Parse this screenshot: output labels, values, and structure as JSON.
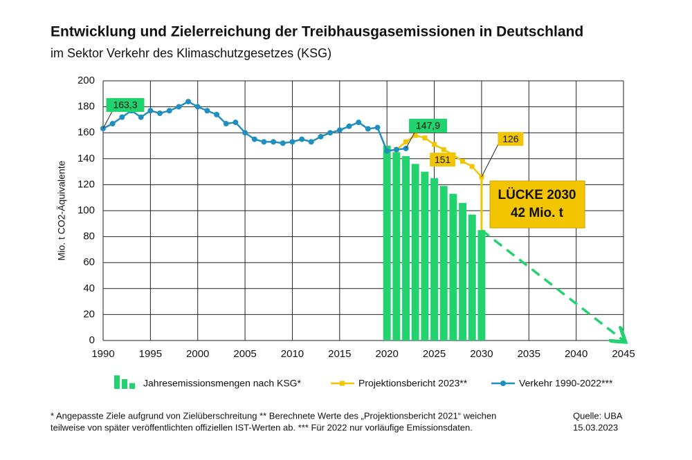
{
  "chart_data": {
    "type": "combo",
    "title": "Entwicklung und Zielerreichung der Treibhausgasemissionen in Deutschland",
    "subtitle": "im Sektor Verkehr des Klimaschutzgesetzes (KSG)",
    "ylabel": "Mio. t CO2-Äquivalente",
    "xlim": [
      1990,
      2045
    ],
    "xticks": [
      1990,
      1995,
      2000,
      2005,
      2010,
      2015,
      2020,
      2025,
      2030,
      2035,
      2040,
      2045
    ],
    "ylim": [
      0,
      200
    ],
    "yticks": [
      0,
      20,
      40,
      60,
      80,
      100,
      120,
      140,
      160,
      180,
      200
    ],
    "grid": true,
    "series": [
      {
        "name": "Jahresemissionsmengen nach KSG*",
        "type": "bar",
        "color": "#22d26e",
        "x": [
          2020,
          2021,
          2022,
          2023,
          2024,
          2025,
          2026,
          2027,
          2028,
          2029,
          2030
        ],
        "values": [
          150,
          145,
          142,
          136,
          130,
          125,
          119,
          113,
          106,
          97,
          85
        ]
      },
      {
        "name": "Projektionsbericht 2023**",
        "type": "line",
        "marker": "square",
        "color": "#f2c500",
        "label_color": "#f2c500",
        "x": [
          2021,
          2022,
          2023,
          2024,
          2025,
          2026,
          2027,
          2028,
          2029,
          2030
        ],
        "values": [
          147,
          153,
          158,
          156,
          151,
          147,
          143,
          138,
          134,
          126
        ],
        "value_labels": [
          null,
          null,
          null,
          null,
          "151",
          null,
          null,
          null,
          null,
          "126"
        ]
      },
      {
        "name": "Verkehr 1990-2022***",
        "type": "line",
        "marker": "circle",
        "color": "#1f8fc0",
        "label_color": "#22d26e",
        "x": [
          1990,
          1991,
          1992,
          1993,
          1994,
          1995,
          1996,
          1997,
          1998,
          1999,
          2000,
          2001,
          2002,
          2003,
          2004,
          2005,
          2006,
          2007,
          2008,
          2009,
          2010,
          2011,
          2012,
          2013,
          2014,
          2015,
          2016,
          2017,
          2018,
          2019,
          2020,
          2021,
          2022
        ],
        "values": [
          163.3,
          167,
          172,
          177,
          172,
          177,
          175,
          177,
          180,
          184,
          180,
          177,
          174,
          167,
          168,
          160,
          155,
          153,
          153,
          152,
          153,
          155,
          153,
          157,
          160,
          162,
          165,
          168,
          163,
          164,
          146,
          147,
          147.9
        ],
        "value_labels": [
          "163,3",
          null,
          null,
          null,
          null,
          null,
          null,
          null,
          null,
          null,
          null,
          null,
          null,
          null,
          null,
          null,
          null,
          null,
          null,
          null,
          null,
          null,
          null,
          null,
          null,
          null,
          null,
          null,
          null,
          null,
          null,
          null,
          "147,9"
        ]
      }
    ],
    "trend": {
      "type": "dashed-arrow",
      "color": "#22d26e",
      "x": [
        2030,
        2045
      ],
      "values": [
        85,
        0
      ]
    },
    "annotations": [
      "LÜCKE 2030",
      "42 Mio. t"
    ],
    "footnote": [
      "* Angepasste Ziele aufgrund von Zielüberschreitung ** Berechnete Werte des „Projektionsbericht 2021“ weichen",
      "teilweise von später veröffentlichten offiziellen IST-Werten ab. *** Für 2022 nur vorläufige Emissionsdaten."
    ],
    "source": [
      "Quelle: UBA",
      "15.03.2023"
    ]
  }
}
